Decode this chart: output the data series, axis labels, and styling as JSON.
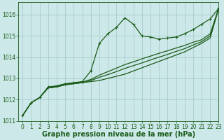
{
  "background_color": "#cce8e8",
  "grid_color": "#aacccc",
  "line_color": "#1a5c1a",
  "xlabel": "Graphe pression niveau de la mer (hPa)",
  "xlim": [
    -0.5,
    23
  ],
  "ylim": [
    1011.0,
    1016.6
  ],
  "yticks": [
    1011,
    1012,
    1013,
    1014,
    1015,
    1016
  ],
  "xticks": [
    0,
    1,
    2,
    3,
    4,
    5,
    6,
    7,
    8,
    9,
    10,
    11,
    12,
    13,
    14,
    15,
    16,
    17,
    18,
    19,
    20,
    21,
    22,
    23
  ],
  "series": [
    {
      "x": [
        0,
        1,
        2,
        3,
        4,
        5,
        6,
        7,
        8,
        9,
        10,
        11,
        12,
        13,
        14,
        15,
        16,
        17,
        18,
        19,
        20,
        21,
        22,
        23
      ],
      "y": [
        1011.25,
        1011.85,
        1012.1,
        1012.6,
        1012.65,
        1012.75,
        1012.8,
        1012.85,
        1013.35,
        1014.65,
        1015.1,
        1015.4,
        1015.85,
        1015.55,
        1015.0,
        1014.95,
        1014.85,
        1014.9,
        1014.95,
        1015.1,
        1015.3,
        1015.55,
        1015.8,
        1016.3
      ],
      "marker": "+",
      "linewidth": 0.9,
      "markersize": 3.5
    },
    {
      "x": [
        0,
        1,
        2,
        3,
        4,
        5,
        6,
        7,
        8,
        9,
        10,
        11,
        12,
        13,
        14,
        15,
        16,
        17,
        18,
        19,
        20,
        21,
        22,
        23
      ],
      "y": [
        1011.25,
        1011.85,
        1012.1,
        1012.55,
        1012.6,
        1012.7,
        1012.75,
        1012.8,
        1012.85,
        1012.9,
        1013.0,
        1013.1,
        1013.2,
        1013.35,
        1013.5,
        1013.65,
        1013.8,
        1013.95,
        1014.1,
        1014.25,
        1014.45,
        1014.65,
        1014.9,
        1016.3
      ],
      "marker": null,
      "linewidth": 0.9,
      "markersize": 0
    },
    {
      "x": [
        0,
        1,
        2,
        3,
        4,
        5,
        6,
        7,
        8,
        9,
        10,
        11,
        12,
        13,
        14,
        15,
        16,
        17,
        18,
        19,
        20,
        21,
        22,
        23
      ],
      "y": [
        1011.25,
        1011.85,
        1012.1,
        1012.55,
        1012.6,
        1012.7,
        1012.75,
        1012.8,
        1012.9,
        1013.05,
        1013.18,
        1013.32,
        1013.47,
        1013.6,
        1013.73,
        1013.87,
        1014.0,
        1014.13,
        1014.27,
        1014.4,
        1014.57,
        1014.73,
        1015.0,
        1016.3
      ],
      "marker": null,
      "linewidth": 0.9,
      "markersize": 0
    },
    {
      "x": [
        0,
        1,
        2,
        3,
        4,
        5,
        6,
        7,
        8,
        9,
        10,
        11,
        12,
        13,
        14,
        15,
        16,
        17,
        18,
        19,
        20,
        21,
        22,
        23
      ],
      "y": [
        1011.25,
        1011.85,
        1012.1,
        1012.58,
        1012.63,
        1012.73,
        1012.78,
        1012.83,
        1012.95,
        1013.15,
        1013.32,
        1013.48,
        1013.65,
        1013.78,
        1013.92,
        1014.05,
        1014.18,
        1014.3,
        1014.43,
        1014.55,
        1014.7,
        1014.82,
        1015.1,
        1016.3
      ],
      "marker": null,
      "linewidth": 0.9,
      "markersize": 0
    }
  ],
  "xlabel_fontsize": 7,
  "tick_fontsize": 5.5
}
